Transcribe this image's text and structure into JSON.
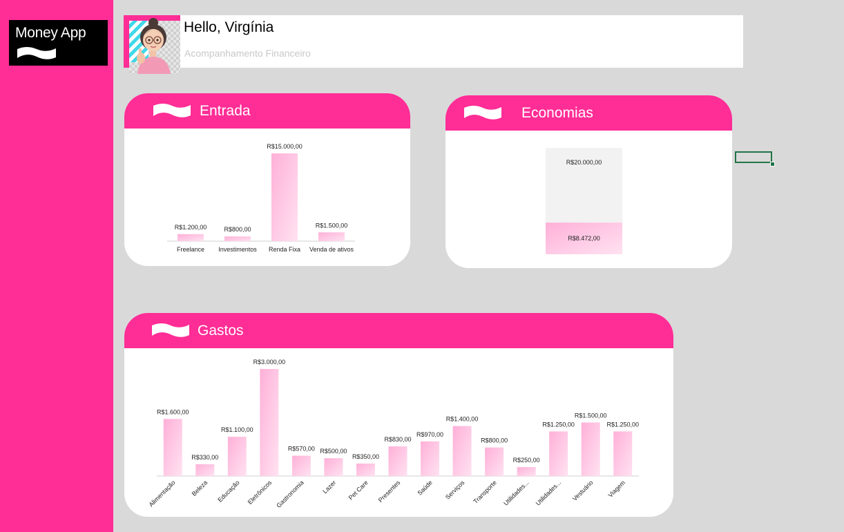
{
  "app": {
    "logo_text": "Money App"
  },
  "header": {
    "greeting": "Hello, Virgínia",
    "subtitle": "Acompanhamento Financeiro"
  },
  "colors": {
    "brand_pink": "#ff2d96",
    "background": "#d9d9d9",
    "bar_gradient_top": "#ffb0d8",
    "bar_gradient_bottom": "#ffe2f1",
    "selection_green": "#217346"
  },
  "cards": {
    "entrada": {
      "title": "Entrada"
    },
    "economias": {
      "title": "Economias"
    },
    "gastos": {
      "title": "Gastos"
    }
  },
  "chart_data": [
    {
      "id": "entrada",
      "type": "bar",
      "categories": [
        "Freelance",
        "Investimentos",
        "Renda Fixa",
        "Venda de ativos"
      ],
      "values": [
        1200,
        800,
        15000,
        1500
      ],
      "data_labels": [
        "R$1.200,00",
        "R$800,00",
        "R$15.000,00",
        "R$1.500,00"
      ],
      "ylim": [
        0,
        15000
      ]
    },
    {
      "id": "economias",
      "type": "bar",
      "stacked": true,
      "series": [
        {
          "values": [
            8472
          ],
          "label": "R$8.472,00"
        },
        {
          "values": [
            20000
          ],
          "label": "R$20.000,00"
        }
      ],
      "ylim": [
        0,
        28472
      ]
    },
    {
      "id": "gastos",
      "type": "bar",
      "categories": [
        "Alimentação",
        "Beleza",
        "Educação",
        "Eletrônicos",
        "Gastronomia",
        "Lazer",
        "Pet Care",
        "Presentes",
        "Saúde",
        "Serviços",
        "Transporte",
        "Utilidades...",
        "Utilidades...",
        "Vestuário",
        "Viagem"
      ],
      "values": [
        1600,
        330,
        1100,
        3000,
        570,
        500,
        350,
        830,
        970,
        1400,
        800,
        250,
        1250,
        1500,
        1250
      ],
      "data_labels": [
        "R$1.600,00",
        "R$330,00",
        "R$1.100,00",
        "R$3.000,00",
        "R$570,00",
        "R$500,00",
        "R$350,00",
        "R$830,00",
        "R$970,00",
        "R$1.400,00",
        "R$800,00",
        "R$250,00",
        "R$1.250,00",
        "R$1.500,00",
        "R$1.250,00"
      ],
      "ylim": [
        0,
        3000
      ]
    }
  ]
}
